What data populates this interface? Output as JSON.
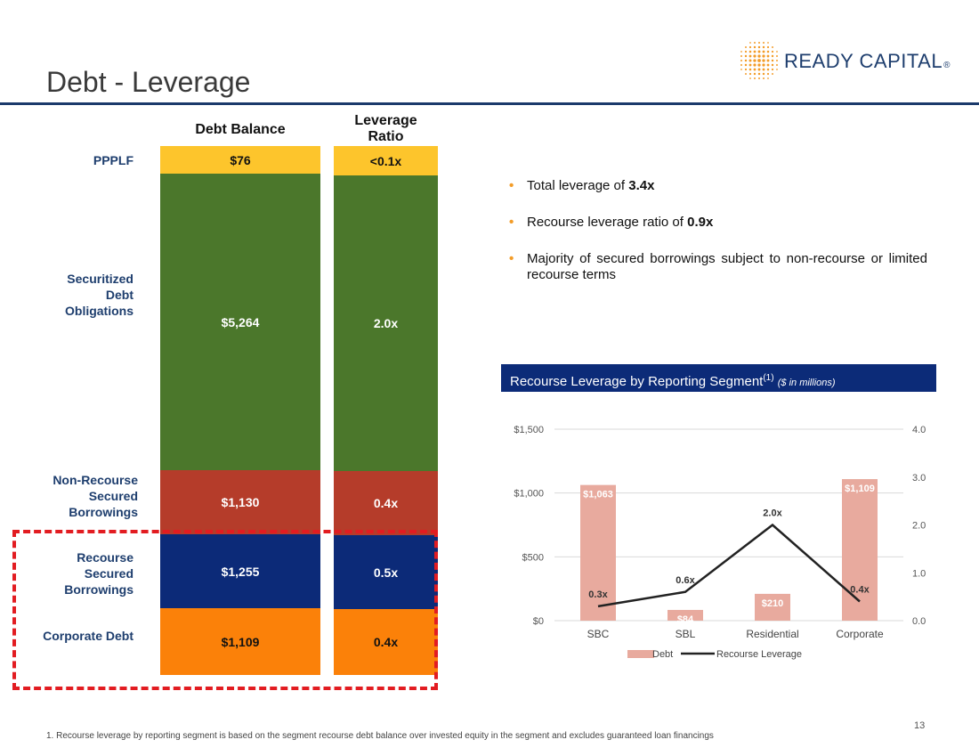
{
  "slide": {
    "title": "Debt - Leverage",
    "brand": "READY CAPITAL",
    "brand_mark": "®",
    "page_number": "13",
    "footnote": "1. Recourse leverage by reporting segment is based on the segment recourse debt balance over invested equity in the segment and excludes guaranteed loan financings"
  },
  "stack": {
    "header_balance": "Debt Balance",
    "header_leverage_1": "Leverage",
    "header_leverage_2": "Ratio",
    "rows": [
      {
        "label": [
          "PPPLF"
        ],
        "balance": "$76",
        "leverage": "<0.1x",
        "color": "#fdc52c",
        "text": "dark"
      },
      {
        "label": [
          "Securitized",
          "Debt",
          "Obligations"
        ],
        "balance": "$5,264",
        "leverage": "2.0x",
        "color": "#4b772b",
        "text": "light"
      },
      {
        "label": [
          "Non-Recourse",
          "Secured",
          "Borrowings"
        ],
        "balance": "$1,130",
        "leverage": "0.4x",
        "color": "#b53c2a",
        "text": "light"
      },
      {
        "label": [
          "Recourse",
          "Secured",
          "Borrowings"
        ],
        "balance": "$1,255",
        "leverage": "0.5x",
        "color": "#0c2a78",
        "text": "light"
      },
      {
        "label": [
          "Corporate Debt"
        ],
        "balance": "$1,109",
        "leverage": "0.4x",
        "color": "#fb8109",
        "text": "dark"
      }
    ]
  },
  "bullets": {
    "b1_text": "Total leverage of ",
    "b1_bold": "3.4x",
    "b2_text": "Recourse leverage ratio of ",
    "b2_bold": "0.9x",
    "b3_text": "Majority of secured borrowings subject to non-recourse or limited recourse terms"
  },
  "chart_header": {
    "title": "Recourse Leverage by Reporting Segment",
    "sup": "(1)",
    "units": "($ in millions)"
  },
  "colors": {
    "bar": "#e8aa9e",
    "line": "#222222",
    "navy": "#0c2b78",
    "accent": "#f39c28"
  },
  "chart_data": {
    "type": "bar",
    "title": "Recourse Leverage by Reporting Segment",
    "categories": [
      "SBC",
      "SBL",
      "Residential",
      "Corporate"
    ],
    "series": [
      {
        "name": "Debt",
        "type": "bar",
        "axis": "left",
        "values": [
          1063,
          84,
          210,
          1109
        ],
        "labels": [
          "$1,063",
          "$84",
          "$210",
          "$1,109"
        ]
      },
      {
        "name": "Recourse Leverage",
        "type": "line",
        "axis": "right",
        "values": [
          0.3,
          0.6,
          2.0,
          0.4
        ],
        "labels": [
          "0.3x",
          "0.6x",
          "2.0x",
          "0.4x"
        ]
      }
    ],
    "y_left": {
      "min": 0,
      "max": 1500,
      "ticks": [
        0,
        500,
        1000,
        1500
      ],
      "tick_labels": [
        "$0",
        "$500",
        "$1,000",
        "$1,500"
      ]
    },
    "y_right": {
      "min": 0,
      "max": 4.0,
      "ticks": [
        0,
        1,
        2,
        3,
        4
      ],
      "tick_labels": [
        "0.0",
        "1.0",
        "2.0",
        "3.0",
        "4.0"
      ]
    },
    "legend": [
      "Debt",
      "Recourse Leverage"
    ],
    "legend_position": "bottom",
    "grid": true
  }
}
